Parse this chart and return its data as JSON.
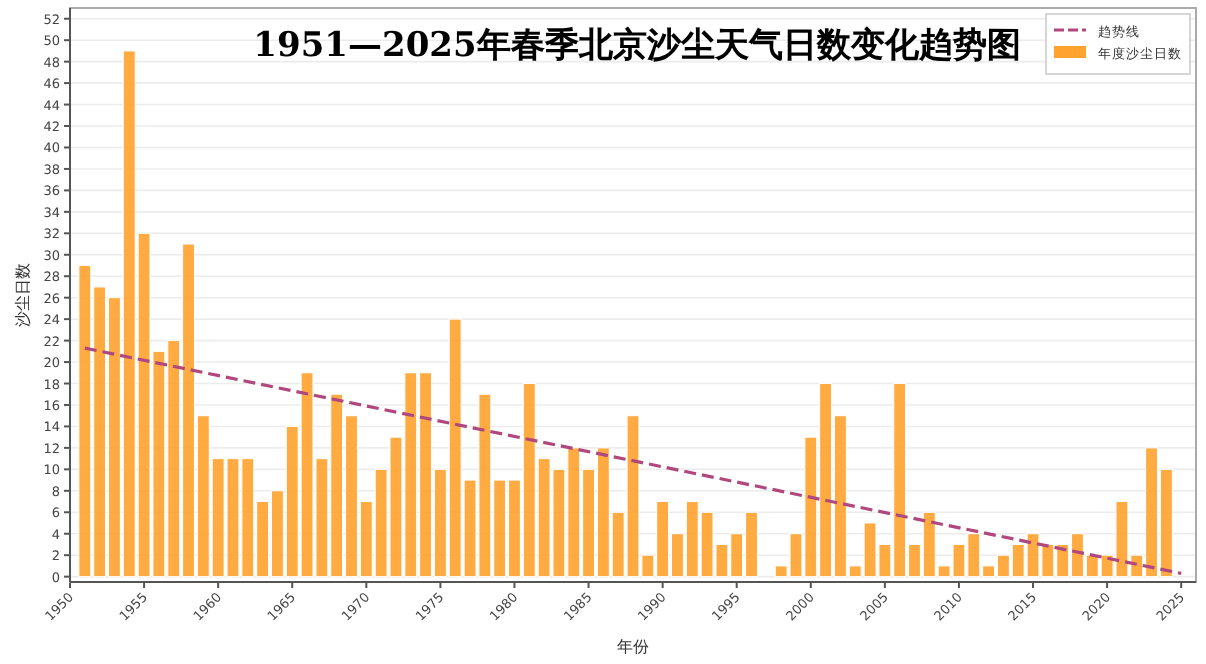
{
  "chart_data": {
    "type": "bar",
    "title": "1951—2025年春季北京沙尘天气日数变化趋势图",
    "xlabel": "年份",
    "ylabel": "沙尘日数",
    "x": [
      1951,
      1952,
      1953,
      1954,
      1955,
      1956,
      1957,
      1958,
      1959,
      1960,
      1961,
      1962,
      1963,
      1964,
      1965,
      1966,
      1967,
      1968,
      1969,
      1970,
      1971,
      1972,
      1973,
      1974,
      1975,
      1976,
      1977,
      1978,
      1979,
      1980,
      1981,
      1982,
      1983,
      1984,
      1985,
      1986,
      1987,
      1988,
      1989,
      1990,
      1991,
      1992,
      1993,
      1994,
      1995,
      1996,
      1997,
      1998,
      1999,
      2000,
      2001,
      2002,
      2003,
      2004,
      2005,
      2006,
      2007,
      2008,
      2009,
      2010,
      2011,
      2012,
      2013,
      2014,
      2015,
      2016,
      2017,
      2018,
      2019,
      2020,
      2021,
      2022,
      2023,
      2024
    ],
    "series": [
      {
        "name": "趋势线",
        "type": "line",
        "color": "#b0487e",
        "line_style": "dashed",
        "x": [
          1951,
          2025
        ],
        "values": [
          21.3,
          0.3
        ]
      },
      {
        "name": "年度沙尘日数",
        "color": "#ffa22e",
        "values": [
          29,
          27,
          26,
          49,
          32,
          21,
          22,
          31,
          15,
          11,
          11,
          11,
          7,
          8,
          14,
          19,
          11,
          17,
          15,
          7,
          10,
          13,
          19,
          19,
          10,
          24,
          9,
          17,
          9,
          9,
          18,
          11,
          10,
          12,
          10,
          12,
          6,
          15,
          2,
          7,
          4,
          7,
          6,
          3,
          4,
          6,
          0,
          1,
          4,
          13,
          18,
          15,
          1,
          5,
          3,
          18,
          3,
          6,
          1,
          3,
          4,
          1,
          2,
          3,
          4,
          3,
          3,
          4,
          2,
          2,
          7,
          2,
          12,
          10
        ]
      }
    ],
    "xlim": [
      1950,
      2026
    ],
    "xticks": [
      1950,
      1955,
      1960,
      1965,
      1970,
      1975,
      1980,
      1985,
      1990,
      1995,
      2000,
      2005,
      2010,
      2015,
      2020,
      2025
    ],
    "ylim": [
      -0.5,
      53
    ],
    "yticks": [
      0,
      2,
      4,
      6,
      8,
      10,
      12,
      14,
      16,
      18,
      20,
      22,
      24,
      26,
      28,
      30,
      32,
      34,
      36,
      38,
      40,
      42,
      44,
      46,
      48,
      50,
      52
    ],
    "grid": "y",
    "legend": "top right"
  }
}
